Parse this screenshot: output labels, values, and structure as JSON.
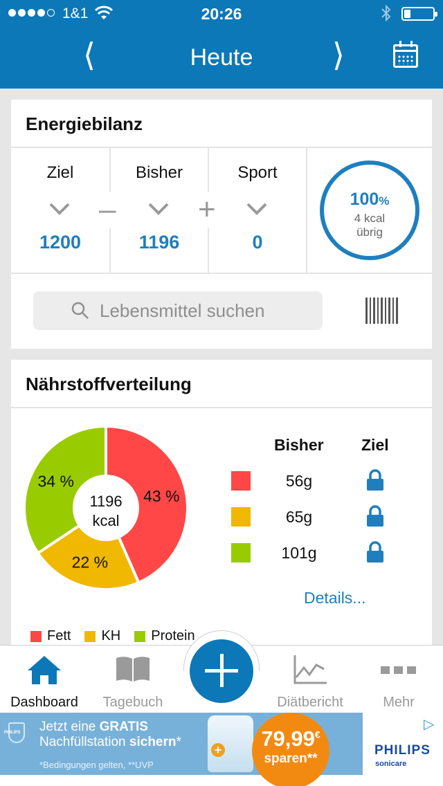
{
  "status_bar": {
    "carrier": "1&1",
    "time": "20:26"
  },
  "header": {
    "title": "Heute",
    "prev_glyph": "⟨",
    "next_glyph": "⟩",
    "bg_color": "#0c78b8"
  },
  "energy": {
    "title": "Energiebilanz",
    "goal_label": "Ziel",
    "goal_value": "1200",
    "so_far_label": "Bisher",
    "so_far_value": "1196",
    "sport_label": "Sport",
    "sport_value": "0",
    "op_minus": "–",
    "op_plus": "+",
    "ring_percent": "100",
    "ring_percent_unit": "%",
    "ring_kcal": "4 kcal",
    "ring_remaining": "übrig",
    "accent_color": "#1e7fbf"
  },
  "search": {
    "placeholder": "Lebensmittel suchen"
  },
  "nutrients": {
    "title": "Nährstoffverteilung",
    "center_value": "1196",
    "center_unit": "kcal",
    "col_so_far": "Bisher",
    "col_goal": "Ziel",
    "rows": [
      {
        "name": "Fett",
        "grams": "56g",
        "color": "#ff4747"
      },
      {
        "name": "KH",
        "grams": "65g",
        "color": "#f0b800"
      },
      {
        "name": "Protein",
        "grams": "101g",
        "color": "#99cc00"
      }
    ],
    "details_link": "Details..."
  },
  "chart_data": {
    "type": "pie",
    "categories": [
      "Fett",
      "KH",
      "Protein"
    ],
    "values": [
      43,
      22,
      34
    ],
    "labels": [
      "43 %",
      "22 %",
      "34 %"
    ],
    "colors": [
      "#ff4747",
      "#f0b800",
      "#99cc00"
    ],
    "center_label": "1196 kcal",
    "legend_position": "bottom-left"
  },
  "tabbar": {
    "tabs": [
      {
        "label": "Dashboard",
        "icon": "home-icon",
        "active": true
      },
      {
        "label": "Tagebuch",
        "icon": "book-icon",
        "active": false
      },
      {
        "label": "",
        "icon": "add-icon",
        "active": false
      },
      {
        "label": "Diätbericht",
        "icon": "chart-icon",
        "active": false
      },
      {
        "label": "Mehr",
        "icon": "more-icon",
        "active": false
      }
    ]
  },
  "ad": {
    "line1_prefix": "Jetzt eine ",
    "line1_strong": "GRATIS",
    "line2_prefix": "Nachfüllstation ",
    "line2_strong": "sichern",
    "line2_suffix": "*",
    "disclaimer": "*Bedingungen gelten, **UVP",
    "price": "79,99",
    "price_currency": "€",
    "price_note": "sparen**",
    "brand": "PHILIPS",
    "subbrand": "sonicare",
    "small_logo_text": "PHILIPS"
  }
}
